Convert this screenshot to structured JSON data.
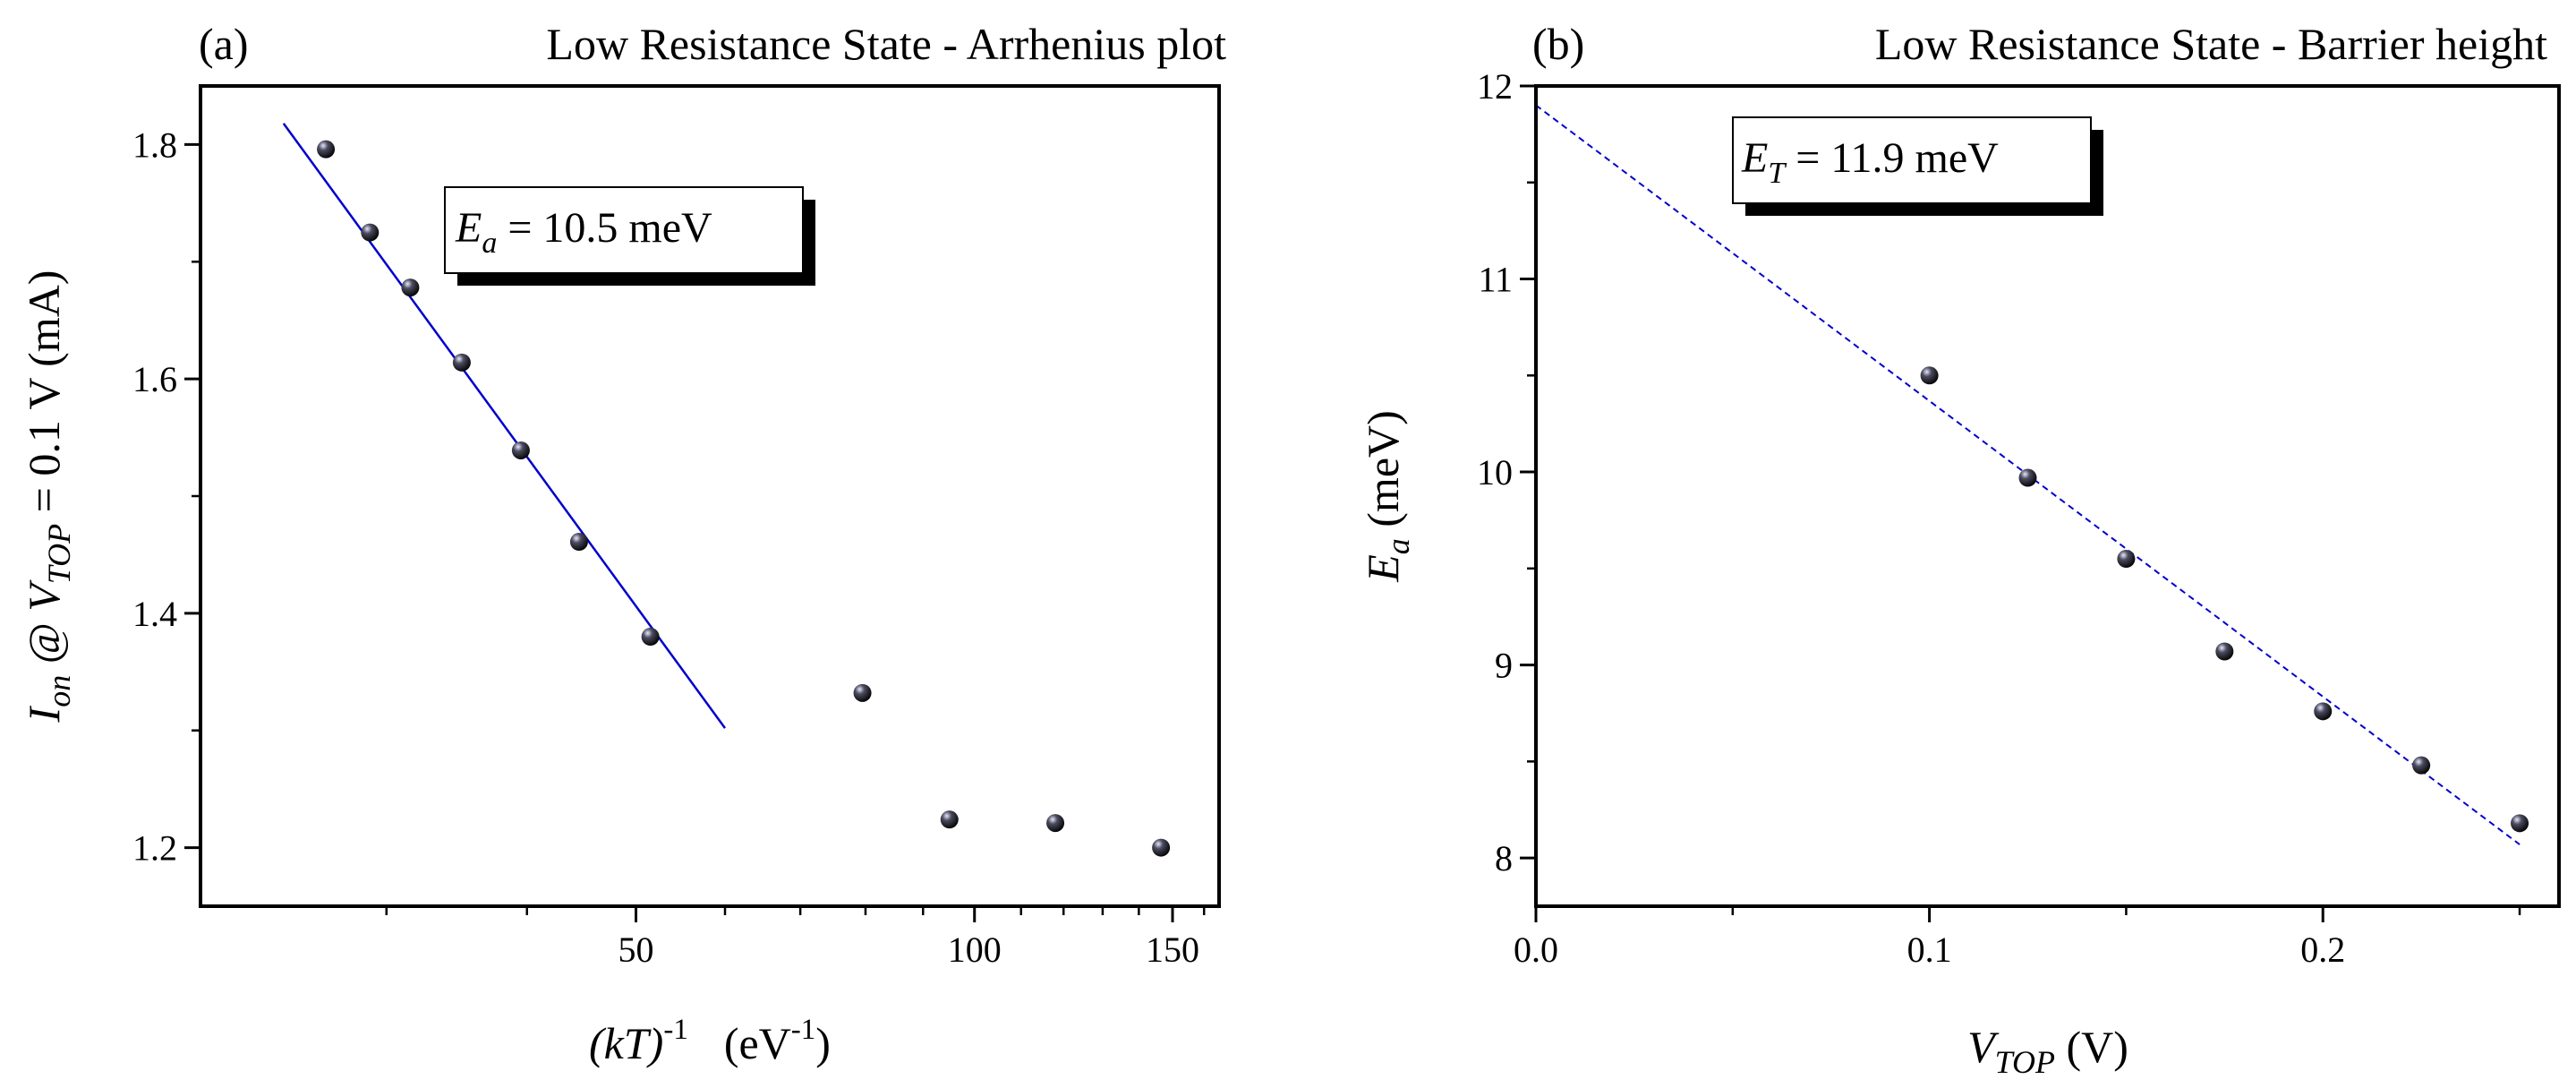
{
  "chart_data": [
    {
      "type": "scatter",
      "panel_label": "(a)",
      "title": "Low Resistance State - Arrhenius plot",
      "x_scale": "log",
      "xlim": [
        20.5,
        165
      ],
      "ylim": [
        1.15,
        1.85
      ],
      "x_ticks": [
        {
          "value": 50,
          "label": "50"
        },
        {
          "value": 100,
          "label": "100"
        },
        {
          "value": 150,
          "label": "150"
        }
      ],
      "x_minor_ticks": [
        30,
        40,
        60,
        70,
        80,
        90,
        110,
        120,
        130,
        140,
        160
      ],
      "y_ticks": [
        {
          "value": 1.2,
          "label": "1.2"
        },
        {
          "value": 1.4,
          "label": "1.4"
        },
        {
          "value": 1.6,
          "label": "1.6"
        },
        {
          "value": 1.8,
          "label": "1.8"
        }
      ],
      "y_minor_ticks": [
        1.3,
        1.5,
        1.7
      ],
      "xlabel": {
        "main": "(kT)",
        "exp": "-1",
        "units": "(eV",
        "units_exp": "-1",
        "close": ")"
      },
      "ylabel": {
        "I": "I",
        "I_sub": "on",
        "at": " @ ",
        "V": "V",
        "V_sub": "TOP",
        "rest": " = 0.1 V (mA)"
      },
      "series": [
        {
          "name": "data",
          "points": [
            {
              "x": 26.5,
              "y": 1.796
            },
            {
              "x": 29.0,
              "y": 1.725
            },
            {
              "x": 31.5,
              "y": 1.678
            },
            {
              "x": 35.0,
              "y": 1.614
            },
            {
              "x": 39.5,
              "y": 1.539
            },
            {
              "x": 44.5,
              "y": 1.461
            },
            {
              "x": 51.5,
              "y": 1.38
            },
            {
              "x": 79.5,
              "y": 1.332
            },
            {
              "x": 95.0,
              "y": 1.224
            },
            {
              "x": 118.0,
              "y": 1.221
            },
            {
              "x": 146.5,
              "y": 1.2
            }
          ]
        },
        {
          "name": "Arrhenius fit",
          "kind": "line",
          "color": "#0000cc",
          "style": "solid",
          "points": [
            {
              "x": 24.3,
              "y": 1.818
            },
            {
              "x": 60.0,
              "y": 1.302
            }
          ]
        }
      ],
      "annotation": {
        "label": "E",
        "sub": "a",
        "value": " = 10.5 meV"
      }
    },
    {
      "type": "scatter",
      "panel_label": "(b)",
      "title": "Low Resistance State - Barrier height",
      "x_scale": "linear",
      "xlim": [
        0.0,
        0.26
      ],
      "ylim": [
        7.75,
        12.0
      ],
      "x_ticks": [
        {
          "value": 0.0,
          "label": "0.0"
        },
        {
          "value": 0.1,
          "label": "0.1"
        },
        {
          "value": 0.2,
          "label": "0.2"
        }
      ],
      "x_minor_ticks": [
        0.05,
        0.15,
        0.25
      ],
      "y_ticks": [
        {
          "value": 8,
          "label": "8"
        },
        {
          "value": 9,
          "label": "9"
        },
        {
          "value": 10,
          "label": "10"
        },
        {
          "value": 11,
          "label": "11"
        },
        {
          "value": 12,
          "label": "12"
        }
      ],
      "y_minor_ticks": [
        8.5,
        9.5,
        10.5,
        11.5
      ],
      "xlabel": {
        "main": "V",
        "sub": "TOP",
        "rest": " (V)"
      },
      "ylabel": {
        "main": "E",
        "sub": "a",
        "rest": " (meV)"
      },
      "series": [
        {
          "name": "data",
          "points": [
            {
              "x": 0.1,
              "y": 10.5
            },
            {
              "x": 0.125,
              "y": 9.97
            },
            {
              "x": 0.15,
              "y": 9.55
            },
            {
              "x": 0.175,
              "y": 9.07
            },
            {
              "x": 0.2,
              "y": 8.76
            },
            {
              "x": 0.225,
              "y": 8.48
            },
            {
              "x": 0.25,
              "y": 8.18
            }
          ]
        },
        {
          "name": "linear fit",
          "kind": "line",
          "color": "#0000cc",
          "style": "dashed",
          "points": [
            {
              "x": 0.0,
              "y": 11.9
            },
            {
              "x": 0.25,
              "y": 8.07
            }
          ]
        }
      ],
      "annotation": {
        "label": "E",
        "sub": "T",
        "value": " = 11.9 meV"
      }
    }
  ]
}
